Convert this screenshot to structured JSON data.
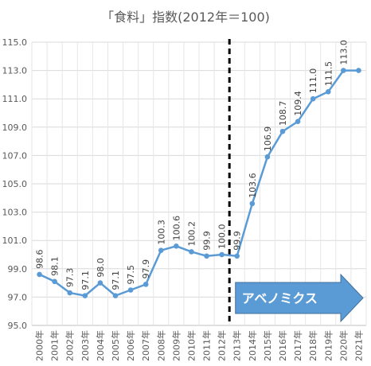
{
  "chart_data": {
    "type": "line",
    "title": "「食料」指数(2012年＝100)",
    "xlabel": "",
    "ylabel": "",
    "categories": [
      "2000年",
      "2001年",
      "2002年",
      "2003年",
      "2004年",
      "2005年",
      "2006年",
      "2007年",
      "2008年",
      "2009年",
      "2010年",
      "2011年",
      "2012年",
      "2013年",
      "2014年",
      "2015年",
      "2016年",
      "2017年",
      "2018年",
      "2019年",
      "2020年",
      "2021年"
    ],
    "series": [
      {
        "values": [
          98.6,
          98.1,
          97.3,
          97.1,
          98.0,
          97.1,
          97.5,
          97.9,
          100.3,
          100.6,
          100.2,
          99.9,
          100.0,
          99.9,
          103.6,
          106.9,
          108.7,
          109.4,
          111.0,
          111.5,
          113.0,
          113.0
        ]
      }
    ],
    "data_labels": [
      "98.6",
      "98.1",
      "97.3",
      "97.1",
      "98.0",
      "97.1",
      "97.5",
      "97.9",
      "100.3",
      "100.6",
      "100.2",
      "99.9",
      "100.0",
      "99.9",
      "103.6",
      "106.9",
      "108.7",
      "109.4",
      "111.0",
      "111.5",
      "113.0",
      ""
    ],
    "ylim": [
      95,
      115
    ],
    "yticks": [
      "95.0",
      "97.0",
      "99.0",
      "101.0",
      "103.0",
      "105.0",
      "107.0",
      "109.0",
      "111.0",
      "113.0",
      "115.0"
    ],
    "grid": true,
    "line_color": "#5B9BD5",
    "annotations": {
      "divider_after": "2012年",
      "arrow_label": "アベノミクス",
      "arrow_color": "#5B9BD5"
    }
  }
}
